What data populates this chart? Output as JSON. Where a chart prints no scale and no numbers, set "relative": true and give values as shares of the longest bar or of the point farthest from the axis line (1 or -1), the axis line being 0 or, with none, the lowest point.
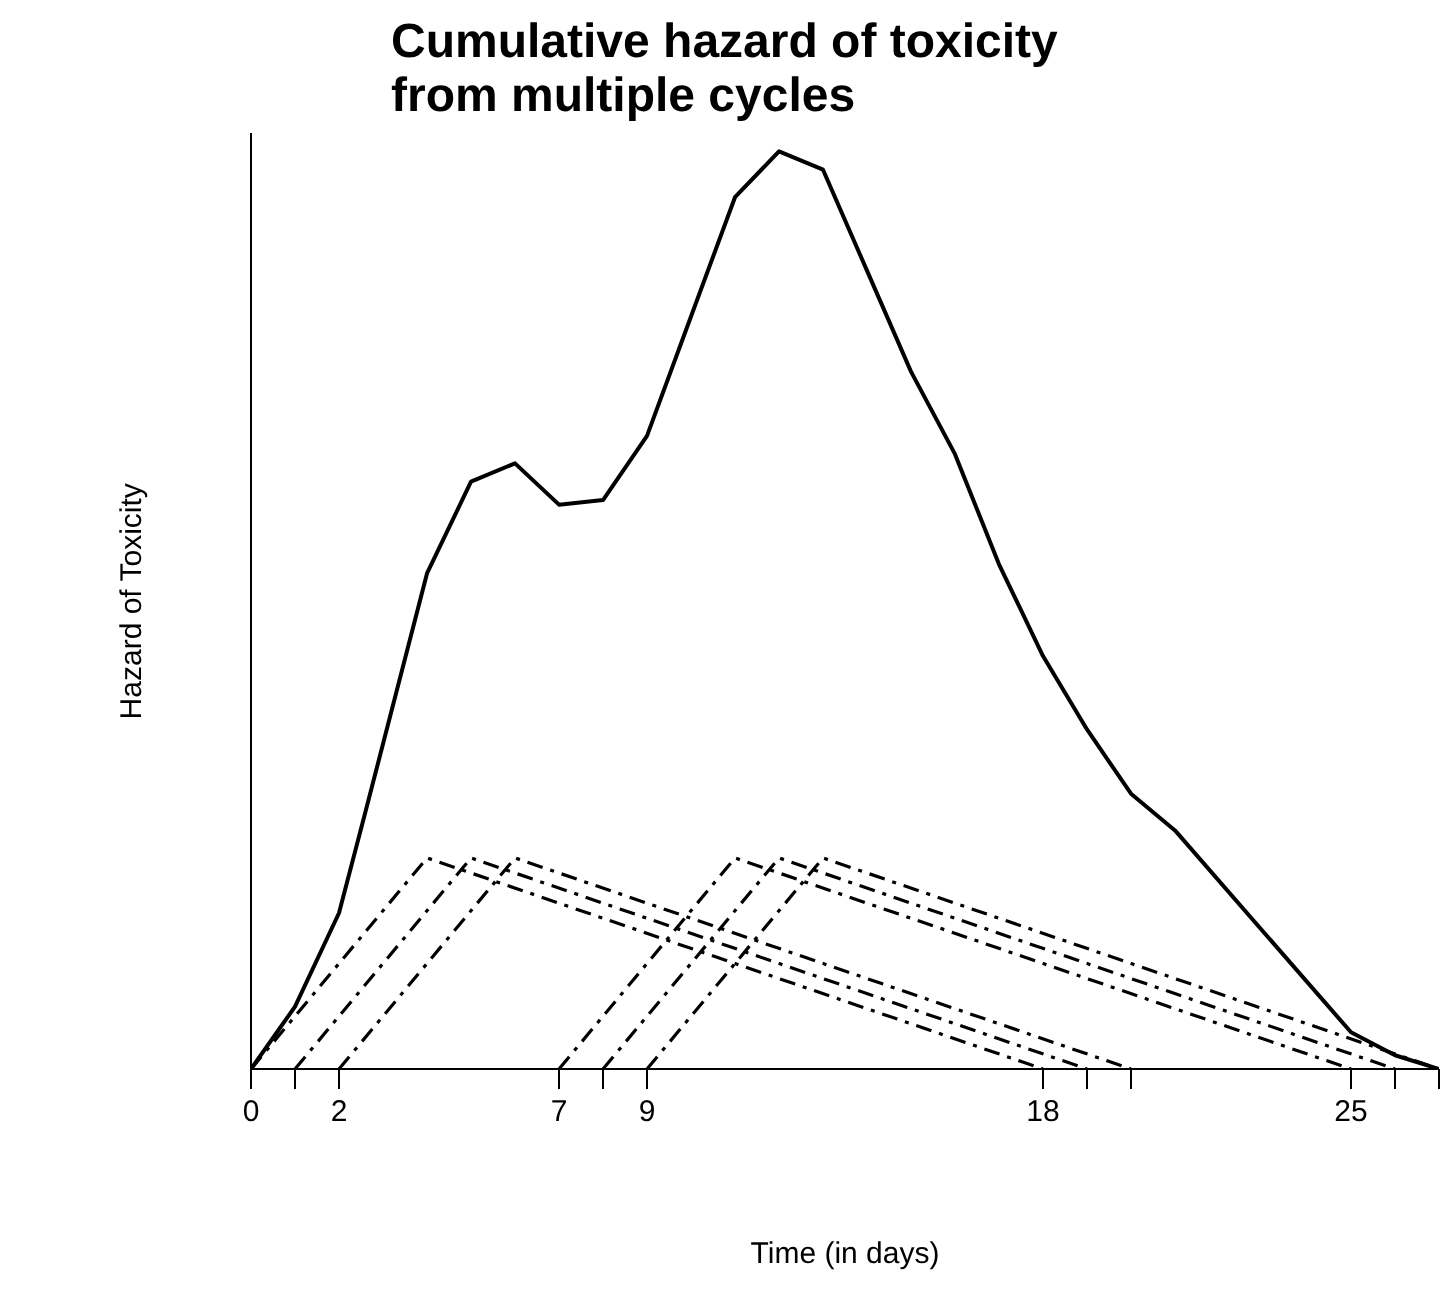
{
  "chart_data": {
    "type": "line",
    "title": "Cumulative hazard of toxicity from multiple cycles",
    "xlabel": "Time (in days)",
    "ylabel": "Hazard of Toxicity",
    "relative": true,
    "grid": false,
    "tick_labels": "x",
    "xlim": [
      0,
      27
    ],
    "xticks": [
      0,
      {
        "value": 1,
        "label": null
      },
      2,
      7,
      {
        "value": 8,
        "label": null
      },
      9,
      18,
      {
        "value": 19,
        "label": null
      },
      {
        "value": 20,
        "label": null
      },
      25,
      {
        "value": 26,
        "label": null
      },
      {
        "value": 27,
        "label": null
      }
    ],
    "series": [
      {
        "color": "#000000",
        "line_style": "solid",
        "x": [
          0,
          1,
          2,
          2.6,
          4,
          5,
          6,
          7,
          8,
          9,
          10,
          11,
          12,
          13,
          14,
          15,
          16,
          17,
          18,
          19,
          20,
          21,
          25,
          26,
          27
        ],
        "values": [
          0,
          0.068,
          0.17,
          0.28,
          0.54,
          0.64,
          0.66,
          0.615,
          0.62,
          0.69,
          0.82,
          0.95,
          1.0,
          0.98,
          0.87,
          0.76,
          0.67,
          0.55,
          0.45,
          0.37,
          0.3,
          0.26,
          0.04,
          0.015,
          0
        ]
      },
      {
        "color": "#000000",
        "line_style": "dashed",
        "x": [
          0,
          4,
          18
        ],
        "values": [
          0,
          0.23,
          0
        ]
      },
      {
        "color": "#000000",
        "line_style": "dashed",
        "x": [
          1,
          5,
          19
        ],
        "values": [
          0,
          0.23,
          0
        ]
      },
      {
        "color": "#000000",
        "line_style": "dashed",
        "x": [
          2,
          6,
          20
        ],
        "values": [
          0,
          0.23,
          0
        ]
      },
      {
        "color": "#000000",
        "line_style": "dashed",
        "x": [
          7,
          11,
          25
        ],
        "values": [
          0,
          0.23,
          0
        ]
      },
      {
        "color": "#000000",
        "line_style": "dashed",
        "x": [
          8,
          12,
          26
        ],
        "values": [
          0,
          0.23,
          0
        ]
      },
      {
        "color": "#000000",
        "line_style": "dashed",
        "x": [
          9,
          13,
          27
        ],
        "values": [
          0,
          0.23,
          0
        ]
      }
    ]
  }
}
